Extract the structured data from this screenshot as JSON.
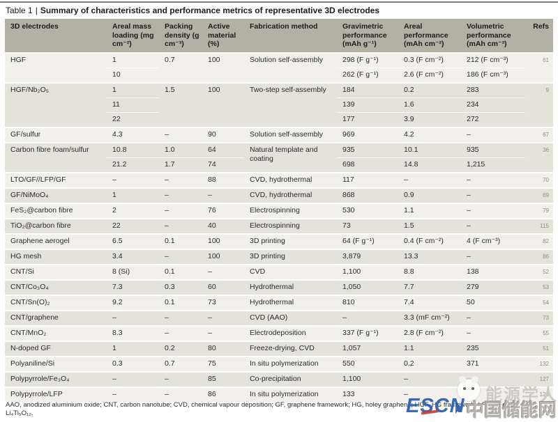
{
  "title": {
    "prefix": "Table 1",
    "separator": "|",
    "text": "Summary of characteristics and performance metrics of representative 3D electrodes"
  },
  "table": {
    "columns": [
      "3D electrodes",
      "Areal mass loading (mg cm⁻²)",
      "Packing density (g cm⁻³)",
      "Active material (%)",
      "Fabrication method",
      "Gravimetric performance (mAh g⁻¹)",
      "Areal performance (mAh cm⁻²)",
      "Volumetric performance (mAh cm⁻³)",
      "Refs"
    ],
    "rows": [
      {
        "electrode": "HGF",
        "fabrication": "Solution self-assembly",
        "ref": "61",
        "shade": "light",
        "sub": [
          {
            "mass": "1",
            "packing": "0.7",
            "active": "100",
            "gravimetric": "298 (F g⁻¹)",
            "areal": "0.3 (F cm⁻²)",
            "volumetric": "212 (F cm⁻³)"
          },
          {
            "mass": "10",
            "gravimetric": "262 (F g⁻¹)",
            "areal": "2.6 (F cm⁻²)",
            "volumetric": "186 (F cm⁻³)"
          }
        ]
      },
      {
        "electrode": "HGF/Nb₂O₅",
        "fabrication": "Two-step self-assembly",
        "ref": "9",
        "shade": "dark",
        "sub": [
          {
            "mass": "1",
            "packing": "1.5",
            "active": "100",
            "gravimetric": "184",
            "areal": "0.2",
            "volumetric": "283"
          },
          {
            "mass": "11",
            "gravimetric": "139",
            "areal": "1.6",
            "volumetric": "234"
          },
          {
            "mass": "22",
            "gravimetric": "177",
            "areal": "3.9",
            "volumetric": "272"
          }
        ]
      },
      {
        "electrode": "GF/sulfur",
        "fabrication": "Solution self-assembly",
        "ref": "67",
        "shade": "light",
        "sub": [
          {
            "mass": "4.3",
            "packing": "–",
            "active": "90",
            "gravimetric": "969",
            "areal": "4.2",
            "volumetric": "–"
          }
        ]
      },
      {
        "electrode": "Carbon fibre foam/sulfur",
        "fabrication": "Natural template and coating",
        "ref": "36",
        "shade": "dark",
        "sub": [
          {
            "mass": "10.8",
            "packing": "1.0",
            "active": "64",
            "gravimetric": "935",
            "areal": "10.1",
            "volumetric": "935"
          },
          {
            "mass": "21.2",
            "packing": "1.7",
            "active": "74",
            "gravimetric": "698",
            "areal": "14.8",
            "volumetric": "1,215"
          }
        ]
      },
      {
        "electrode": "LTO/GF//LFP/GF",
        "fabrication": "CVD, hydrothermal",
        "ref": "70",
        "shade": "light",
        "sub": [
          {
            "mass": "–",
            "packing": "–",
            "active": "88",
            "gravimetric": "117",
            "areal": "–",
            "volumetric": "–"
          }
        ]
      },
      {
        "electrode": "GF/NiMoO₄",
        "fabrication": "CVD, hydrothermal",
        "ref": "69",
        "shade": "dark",
        "sub": [
          {
            "mass": "1",
            "packing": "–",
            "active": "–",
            "gravimetric": "868",
            "areal": "0.9",
            "volumetric": "–"
          }
        ]
      },
      {
        "electrode": "FeS₂@carbon fibre",
        "fabrication": "Electrospinning",
        "ref": "79",
        "shade": "light",
        "sub": [
          {
            "mass": "2",
            "packing": "–",
            "active": "76",
            "gravimetric": "530",
            "areal": "1.1",
            "volumetric": "–"
          }
        ]
      },
      {
        "electrode": "TiO₂@carbon fibre",
        "fabrication": "Electrospinning",
        "ref": "115",
        "shade": "dark",
        "sub": [
          {
            "mass": "22",
            "packing": "–",
            "active": "40",
            "gravimetric": "73",
            "areal": "1.5",
            "volumetric": "–"
          }
        ]
      },
      {
        "electrode": "Graphene aerogel",
        "fabrication": "3D printing",
        "ref": "82",
        "shade": "light",
        "sub": [
          {
            "mass": "6.5",
            "packing": "0.1",
            "active": "100",
            "gravimetric": "64 (F g⁻¹)",
            "areal": "0.4 (F cm⁻²)",
            "volumetric": "4 (F cm⁻³)"
          }
        ]
      },
      {
        "electrode": "HG mesh",
        "fabrication": "3D printing",
        "ref": "86",
        "shade": "dark",
        "sub": [
          {
            "mass": "3.4",
            "packing": "–",
            "active": "100",
            "gravimetric": "3,879",
            "areal": "13.3",
            "volumetric": "–"
          }
        ]
      },
      {
        "electrode": "CNT/Si",
        "fabrication": "CVD",
        "ref": "52",
        "shade": "light",
        "sub": [
          {
            "mass": "8 (Si)",
            "packing": "0.1",
            "active": "–",
            "gravimetric": "1,100",
            "areal": "8.8",
            "volumetric": "138"
          }
        ]
      },
      {
        "electrode": "CNT/Co₃O₄",
        "fabrication": "Hydrothermal",
        "ref": "53",
        "shade": "dark",
        "sub": [
          {
            "mass": "7.3",
            "packing": "0.3",
            "active": "60",
            "gravimetric": "1,050",
            "areal": "7.7",
            "volumetric": "279"
          }
        ]
      },
      {
        "electrode": "CNT/Sn(O)₂",
        "fabrication": "Hydrothermal",
        "ref": "54",
        "shade": "light",
        "sub": [
          {
            "mass": "9.2",
            "packing": "0.1",
            "active": "73",
            "gravimetric": "810",
            "areal": "7.4",
            "volumetric": "50"
          }
        ]
      },
      {
        "electrode": "CNT/graphene",
        "fabrication": "CVD (AAO)",
        "ref": "73",
        "shade": "dark",
        "sub": [
          {
            "mass": "–",
            "packing": "–",
            "active": "–",
            "gravimetric": "–",
            "areal": "3.3 (mF cm⁻²)",
            "volumetric": "–"
          }
        ]
      },
      {
        "electrode": "CNT/MnO₂",
        "fabrication": "Electrodeposition",
        "ref": "55",
        "shade": "light",
        "sub": [
          {
            "mass": "8.3",
            "packing": "–",
            "active": "–",
            "gravimetric": "337 (F g⁻¹)",
            "areal": "2.8 (F cm⁻²)",
            "volumetric": "–"
          }
        ]
      },
      {
        "electrode": "N-doped GF",
        "fabrication": "Freeze-drying, CVD",
        "ref": "51",
        "shade": "dark",
        "sub": [
          {
            "mass": "1",
            "packing": "0.2",
            "active": "80",
            "gravimetric": "1,057",
            "areal": "1.1",
            "volumetric": "235"
          }
        ]
      },
      {
        "electrode": "Polyaniline/Si",
        "fabrication": "In situ polymerization",
        "ref": "132",
        "shade": "light",
        "sub": [
          {
            "mass": "0.3",
            "packing": "0.7",
            "active": "75",
            "gravimetric": "550",
            "areal": "0.2",
            "volumetric": "371"
          }
        ]
      },
      {
        "electrode": "Polypyrrole/Fe₃O₄",
        "fabrication": "Co-precipitation",
        "ref": "127",
        "shade": "dark",
        "sub": [
          {
            "mass": "–",
            "packing": "–",
            "active": "85",
            "gravimetric": "1,100",
            "areal": "–",
            "volumetric": "–"
          }
        ]
      },
      {
        "electrode": "Polypyrrole/LFP",
        "fabrication": "In situ polymerization",
        "ref": "128",
        "shade": "light",
        "sub": [
          {
            "mass": "–",
            "packing": "–",
            "active": "86",
            "gravimetric": "133",
            "areal": "–",
            "volumetric": "–"
          }
        ]
      }
    ]
  },
  "footnote": "AAO, anodized aluminium oxide; CNT, carbon nanotube; CVD, chemical vapour deposition; GF, graphene framework; HG, holey graphene; HGF, HG framework; LFP, LiFePO₄; LTO, Li₄Ti₅O₁₂.",
  "watermark": {
    "brand": "能源学人",
    "escn": "ESCN",
    "escn_suffix": "中国储能网"
  },
  "colors": {
    "header_bg": "#b2b1a3",
    "row_light": "#f1f0ea",
    "row_dark": "#e4e3da",
    "escn_blue": "#2e62ae",
    "escn_red": "#c63b2f",
    "watermark_gray": "#cbc8c0"
  }
}
